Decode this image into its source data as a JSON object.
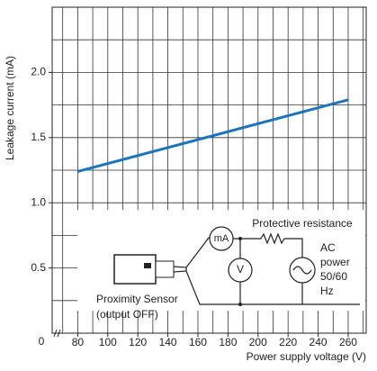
{
  "chart_data": {
    "type": "line",
    "x_label": "Power supply voltage (V)",
    "y_label": "Leakage current (mA)",
    "x_origin_label": "0",
    "xlim": [
      63,
      272
    ],
    "ylim": [
      0,
      2.5
    ],
    "xticks": [
      80,
      100,
      120,
      140,
      160,
      180,
      200,
      220,
      240,
      260
    ],
    "yticks": [
      0.5,
      {
        "value": 1,
        "label": "1.0"
      },
      1.5,
      {
        "value": 2,
        "label": "2.0"
      }
    ],
    "xgrid": [
      70,
      80,
      90,
      100,
      110,
      120,
      130,
      140,
      150,
      160,
      170,
      180,
      190,
      200,
      210,
      220,
      230,
      240,
      250,
      260,
      270
    ],
    "ygrid": [
      0.25,
      0.5,
      0.75,
      1,
      1.25,
      1.5,
      1.75,
      2,
      2.25
    ],
    "x": [
      80,
      260
    ],
    "series": [
      {
        "color": "#1a75bb",
        "values": [
          1.24,
          1.79
        ]
      }
    ],
    "inset": {
      "resistor": "Protective resistance",
      "ammeter": "mA",
      "voltmeter": "V",
      "source": [
        "AC",
        "power",
        "50/60",
        "Hz"
      ],
      "sensor": [
        "Proximity Sensor",
        "(output OFF)"
      ]
    }
  }
}
